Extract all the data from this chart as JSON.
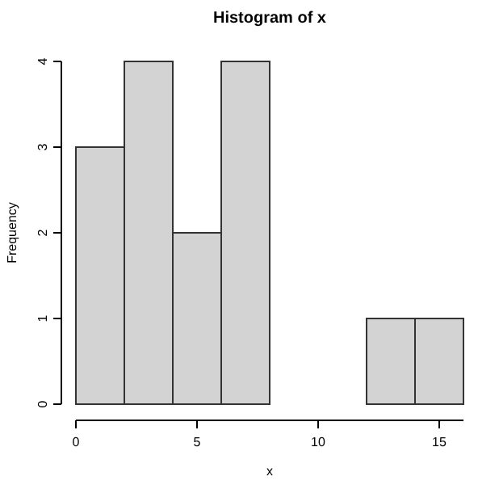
{
  "chart_data": {
    "type": "histogram",
    "title": "Histogram of x",
    "xlabel": "x",
    "ylabel": "Frequency",
    "bins": [
      0,
      2,
      4,
      6,
      8,
      10,
      12,
      14,
      16
    ],
    "values": [
      3,
      4,
      2,
      4,
      0,
      0,
      1,
      1
    ],
    "color": "#d3d3d3",
    "xlim": [
      0,
      16
    ],
    "xticks": [
      0,
      5,
      10,
      15
    ],
    "ylim": [
      0,
      4
    ],
    "yticks": [
      0,
      1,
      2,
      3,
      4
    ],
    "grid": false
  }
}
